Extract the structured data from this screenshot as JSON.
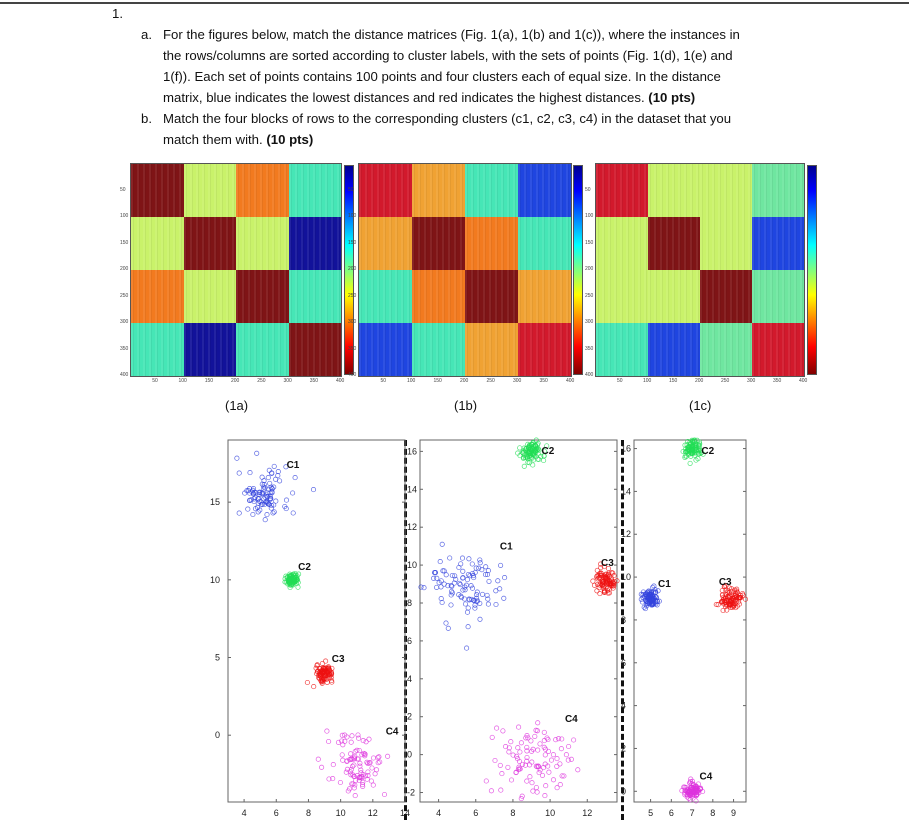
{
  "question": {
    "number": "1.",
    "a_label": "a.",
    "a_lines": [
      "For the figures below, match the distance matrices (Fig. 1(a), 1(b) and 1(c)), where the instances in",
      "the rows/columns are sorted according to cluster labels, with the sets of points (Fig. 1(d), 1(e) and",
      "1(f)). Each set of points contains 100 points and four clusters each of equal size. In the distance",
      "matrix, blue indicates the lowest distances and red indicates the highest distances."
    ],
    "a_points": "(10 pts)",
    "b_label": "b.",
    "b_lines": [
      "Match the four blocks of rows to the corresponding clusters (c1, c2, c3, c4) in the dataset that you",
      "match them with."
    ],
    "b_points": "(10 pts)"
  },
  "colors": {
    "dark_red": "#7f1416",
    "red": "#d2192c",
    "orange": "#f27a1f",
    "orange_yellow": "#f0a233",
    "yellow_green": "#c9f26a",
    "teal": "#46e6b6",
    "teal_green": "#6fe6a0",
    "blue": "#1f45e0",
    "dark_blue": "#12129a",
    "c1": "#3344dd",
    "c2": "#22dd55",
    "c3": "#ee1111",
    "c4": "#dd33dd"
  },
  "matrices": [
    {
      "caption": "(1a)",
      "blocks": [
        [
          "dark_red",
          "yellow_green",
          "orange",
          "teal"
        ],
        [
          "yellow_green",
          "dark_red",
          "yellow_green",
          "dark_blue"
        ],
        [
          "orange",
          "yellow_green",
          "dark_red",
          "teal"
        ],
        [
          "teal",
          "dark_blue",
          "teal",
          "dark_red"
        ]
      ]
    },
    {
      "caption": "(1b)",
      "blocks": [
        [
          "red",
          "orange_yellow",
          "teal",
          "blue"
        ],
        [
          "orange_yellow",
          "dark_red",
          "orange",
          "teal"
        ],
        [
          "teal",
          "orange",
          "dark_red",
          "orange_yellow"
        ],
        [
          "blue",
          "teal",
          "orange_yellow",
          "red"
        ]
      ]
    },
    {
      "caption": "(1c)",
      "blocks": [
        [
          "red",
          "yellow_green",
          "yellow_green",
          "teal_green"
        ],
        [
          "yellow_green",
          "dark_red",
          "yellow_green",
          "blue"
        ],
        [
          "yellow_green",
          "yellow_green",
          "dark_red",
          "teal_green"
        ],
        [
          "teal",
          "blue",
          "teal_green",
          "red"
        ]
      ]
    }
  ],
  "matrix_ticks": [
    "50",
    "100",
    "150",
    "200",
    "250",
    "300",
    "350",
    "400"
  ],
  "chart_data": [
    {
      "type": "scatter",
      "xlim": [
        3,
        14
      ],
      "ylim": [
        -4.3,
        19
      ],
      "xticks": [
        "4",
        "6",
        "8",
        "10",
        "12",
        "14"
      ],
      "yticks": [
        "0",
        "5",
        "10",
        "15"
      ],
      "clusters": [
        {
          "label": "C1",
          "center": [
            5.2,
            15.5
          ],
          "spread": 0.8,
          "n": 25
        },
        {
          "label": "C2",
          "center": [
            7,
            10
          ],
          "spread": 0.2,
          "n": 25
        },
        {
          "label": "C3",
          "center": [
            9,
            4
          ],
          "spread": 0.25,
          "n": 25
        },
        {
          "label": "C4",
          "center": [
            11,
            -2
          ],
          "spread": 1.0,
          "n": 25
        }
      ]
    },
    {
      "type": "scatter",
      "xlim": [
        3,
        13.6
      ],
      "ylim": [
        -2.5,
        16.6
      ],
      "xticks": [
        "4",
        "6",
        "8",
        "10",
        "12"
      ],
      "yticks": [
        "-2",
        "0",
        "2",
        "4",
        "6",
        "8",
        "10",
        "12",
        "14",
        "16"
      ],
      "clusters": [
        {
          "label": "C1",
          "center": [
            5.5,
            8.8
          ],
          "spread": 1.0,
          "n": 25
        },
        {
          "label": "C2",
          "center": [
            9,
            16
          ],
          "spread": 0.3,
          "n": 25
        },
        {
          "label": "C3",
          "center": [
            13,
            9.2
          ],
          "spread": 0.3,
          "n": 25
        },
        {
          "label": "C4",
          "center": [
            9,
            -0.3
          ],
          "spread": 1.0,
          "n": 25
        }
      ]
    },
    {
      "type": "scatter",
      "xlim": [
        4.2,
        9.6
      ],
      "ylim": [
        -0.5,
        16.4
      ],
      "xticks": [
        "5",
        "6",
        "7",
        "8",
        "9"
      ],
      "yticks": [
        "0",
        "2",
        "4",
        "6",
        "8",
        "10",
        "12",
        "14",
        "16"
      ],
      "clusters": [
        {
          "label": "C1",
          "center": [
            5,
            9
          ],
          "spread": 0.2,
          "n": 25
        },
        {
          "label": "C2",
          "center": [
            7,
            16
          ],
          "spread": 0.25,
          "n": 25
        },
        {
          "label": "C3",
          "center": [
            8.9,
            9
          ],
          "spread": 0.25,
          "n": 25
        },
        {
          "label": "C4",
          "center": [
            7,
            0
          ],
          "spread": 0.2,
          "n": 25
        }
      ]
    }
  ]
}
